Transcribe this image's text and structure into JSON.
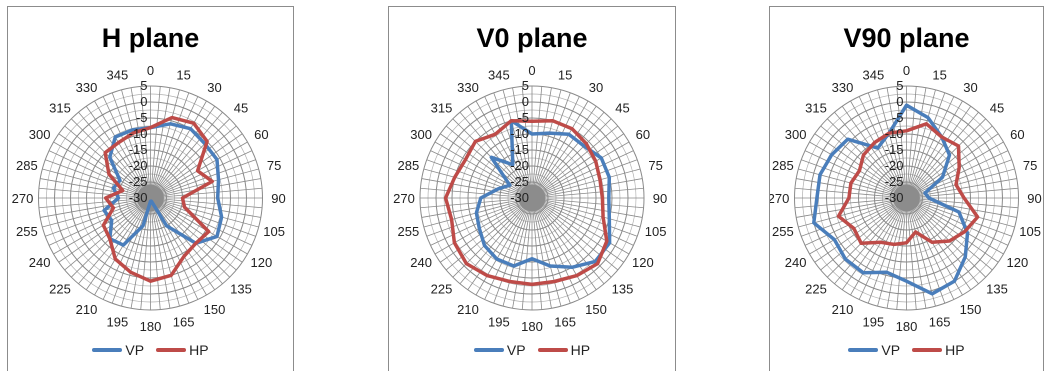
{
  "chart_data": [
    {
      "type": "radar",
      "title": "H plane",
      "angle_labels": [
        "0",
        "15",
        "30",
        "45",
        "60",
        "75",
        "90",
        "105",
        "120",
        "135",
        "150",
        "165",
        "180",
        "195",
        "210",
        "225",
        "240",
        "255",
        "270",
        "285",
        "300",
        "315",
        "330",
        "345"
      ],
      "radial_labels": [
        "5",
        "0",
        "-5",
        "-10",
        "-15",
        "-20",
        "-25",
        "-30"
      ],
      "rlim": [
        -30,
        5
      ],
      "grid": true,
      "legend_position": "bottom",
      "series": [
        {
          "name": "VP",
          "color": "#4a7ebb",
          "values": [
            -8,
            -6,
            -5,
            -6,
            -6,
            -8,
            -9,
            -7,
            -6,
            -10,
            -20,
            -29,
            -29,
            -21,
            -13,
            -12,
            -16,
            -15,
            -20,
            -18,
            -19,
            -12,
            -8,
            -8
          ]
        },
        {
          "name": "HP",
          "color": "#be4b48",
          "values": [
            -8,
            -4,
            -3,
            -5,
            -13,
            -10,
            -20,
            -19,
            -9,
            -10,
            -9,
            -5,
            -4,
            -6,
            -8,
            -12,
            -13,
            -18,
            -16,
            -21,
            -15,
            -10,
            -10,
            -9
          ]
        }
      ]
    },
    {
      "type": "radar",
      "title": "V0 plane",
      "angle_labels": [
        "0",
        "15",
        "30",
        "45",
        "60",
        "75",
        "90",
        "105",
        "120",
        "135",
        "150",
        "165",
        "180",
        "195",
        "210",
        "225",
        "240",
        "255",
        "270",
        "285",
        "300",
        "315",
        "330",
        "345"
      ],
      "radial_labels": [
        "5",
        "0",
        "-5",
        "-10",
        "-15",
        "-20",
        "-25",
        "-30"
      ],
      "rlim": [
        -30,
        5
      ],
      "grid": true,
      "legend_position": "bottom",
      "series": [
        {
          "name": "VP",
          "color": "#4a7ebb",
          "values": [
            -10,
            -9,
            -7,
            -7,
            -5,
            -5,
            -6,
            -5,
            -2,
            -2,
            -5,
            -8,
            -11,
            -8,
            -8,
            -9,
            -11,
            -12,
            -14,
            -19,
            -22,
            -12,
            -18,
            -5
          ]
        },
        {
          "name": "HP",
          "color": "#be4b48",
          "values": [
            -6,
            -5,
            -5,
            -6,
            -7,
            -8,
            -8,
            -7,
            -3,
            -1,
            -2,
            -3,
            -3,
            -3,
            -2,
            -1,
            -2,
            -4,
            -3,
            -5,
            -6,
            -5,
            -7,
            -5
          ]
        }
      ]
    },
    {
      "type": "radar",
      "title": "V90 plane",
      "angle_labels": [
        "0",
        "15",
        "30",
        "45",
        "60",
        "75",
        "90",
        "105",
        "120",
        "135",
        "150",
        "165",
        "180",
        "195",
        "210",
        "225",
        "240",
        "255",
        "270",
        "285",
        "300",
        "315",
        "330",
        "345"
      ],
      "radial_labels": [
        "5",
        "0",
        "-5",
        "-10",
        "-15",
        "-20",
        "-25",
        "-30"
      ],
      "rlim": [
        -30,
        5
      ],
      "grid": true,
      "legend_position": "bottom",
      "series": [
        {
          "name": "VP",
          "color": "#4a7ebb",
          "values": [
            -1,
            -4,
            -8,
            -11,
            -17,
            -24,
            -23,
            -13,
            -8,
            -4,
            0,
            1,
            -4,
            -6,
            -3,
            -3,
            -4,
            0,
            -2,
            -2,
            -3,
            -4,
            -12,
            -9
          ]
        },
        {
          "name": "HP",
          "color": "#be4b48",
          "values": [
            -9,
            -6,
            -8,
            -7,
            -11,
            -14,
            -12,
            -7,
            -9,
            -11,
            -14,
            -19,
            -16,
            -15,
            -14,
            -10,
            -11,
            -8,
            -12,
            -12,
            -13,
            -11,
            -10,
            -9
          ]
        }
      ]
    }
  ]
}
